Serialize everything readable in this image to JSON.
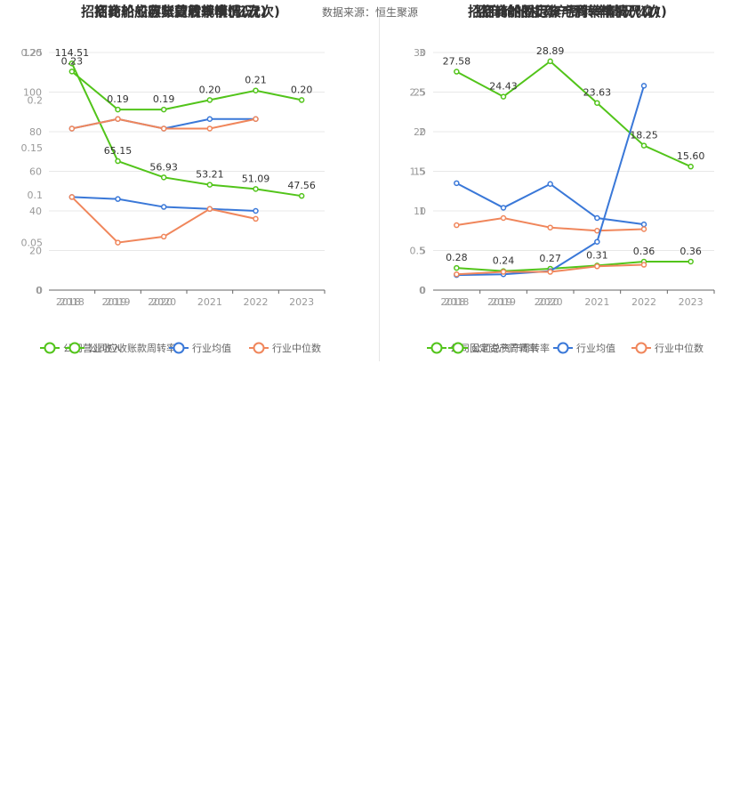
{
  "source_label": "数据来源：恒生聚源",
  "chart_data": [
    {
      "id": "left",
      "type": "line",
      "title": "招商轮船历年营收规模(亿元)",
      "overlay_titles": [
        "招商轮船应收账款周转率情况(次)",
        "招商轮船存货周转率情况(次)"
      ],
      "x": [
        "2018",
        "2019",
        "2020",
        "2021",
        "2022",
        "2023"
      ],
      "overlay_x": [
        "2018",
        "2019",
        "2020"
      ],
      "y_axis_left": {
        "ticks": [
          "0",
          "20",
          "40",
          "60",
          "80",
          "100",
          "120"
        ],
        "ylim": [
          0,
          120
        ]
      },
      "y_axis_right": {
        "ticks": [
          "0",
          "0.05",
          "0.1",
          "0.15",
          "0.2",
          "0.25"
        ],
        "ylim": [
          0,
          0.25
        ]
      },
      "series": [
        {
          "name": "公司营业收入",
          "axis": "left",
          "color": "#52c41a",
          "values": [
            114.51,
            65.15,
            56.93,
            53.21,
            51.09,
            47.56
          ],
          "labels": [
            "114.51",
            "65.15",
            "56.93",
            "53.21",
            "51.09",
            "47.56"
          ]
        },
        {
          "name": "公司应收账款周转率",
          "axis": "right",
          "color": "#52c41a",
          "values": [
            0.23,
            0.19,
            0.19,
            0.2,
            0.21,
            0.2
          ],
          "labels": [
            "0.23",
            "0.19",
            "0.19",
            "0.20",
            "0.21",
            "0.20"
          ]
        },
        {
          "name": "行业均值",
          "axis": "left",
          "color": "#3a78d8",
          "values": [
            47,
            46,
            42,
            41,
            40,
            null
          ]
        },
        {
          "name": "行业中位数",
          "axis": "left",
          "color": "#f0865b",
          "values": [
            47,
            24,
            27,
            41,
            36,
            null
          ]
        },
        {
          "name": "行业均值",
          "axis": "right",
          "color": "#3a78d8",
          "values": [
            0.17,
            0.18,
            0.17,
            0.18,
            0.18,
            null
          ]
        },
        {
          "name": "行业中位数",
          "axis": "right",
          "color": "#f0865b",
          "values": [
            0.17,
            0.18,
            0.17,
            0.17,
            0.18,
            null
          ]
        }
      ],
      "legend": [
        {
          "label": "公司营业收入",
          "color": "#52c41a"
        },
        {
          "label": "公司应收账款周转率",
          "color": "#52c41a"
        },
        {
          "label": "行业均值",
          "color": "#3a78d8"
        },
        {
          "label": "行业中位数",
          "color": "#f0865b"
        }
      ]
    },
    {
      "id": "right",
      "type": "line",
      "title": "招商轮船固定资产周转率情况(次)",
      "overlay_titles": [
        "招商轮船历年毛利率情况(%)",
        "招商轮船总资产周转率情况(次)"
      ],
      "x": [
        "2018",
        "2019",
        "2020",
        "2021",
        "2022",
        "2023"
      ],
      "overlay_x": [
        "2018",
        "2019",
        "2020"
      ],
      "y_axis_left": {
        "ticks": [
          "0",
          "0.5",
          "1",
          "1.5",
          "2",
          "2.5",
          "3"
        ],
        "ylim": [
          0,
          3
        ]
      },
      "y_axis_right": {
        "ticks": [
          "0",
          "5",
          "10",
          "15",
          "20",
          "25",
          "30"
        ],
        "ylim": [
          0,
          30
        ]
      },
      "series": [
        {
          "name": "公司毛利率",
          "axis": "right",
          "color": "#52c41a",
          "values": [
            27.58,
            24.43,
            28.89,
            23.63,
            18.25,
            15.6
          ],
          "labels": [
            "27.58",
            "24.43",
            "28.89",
            "23.63",
            "18.25",
            "15.60"
          ]
        },
        {
          "name": "公司总资产周转率",
          "axis": "left",
          "color": "#52c41a",
          "values": [
            0.28,
            0.24,
            0.27,
            0.31,
            0.36,
            0.36
          ],
          "labels": [
            "0.28",
            "0.24",
            "0.27",
            "0.31",
            "0.36",
            "0.36"
          ]
        },
        {
          "name": "行业均值",
          "axis": "right",
          "color": "#3a78d8",
          "values": [
            13.5,
            10.4,
            13.4,
            9.1,
            8.3,
            null
          ]
        },
        {
          "name": "行业中位数",
          "axis": "right",
          "color": "#f0865b",
          "values": [
            8.2,
            9.1,
            7.9,
            7.5,
            7.7,
            null
          ]
        },
        {
          "name": "行业均值",
          "axis": "left",
          "color": "#3a78d8",
          "values": [
            0.19,
            0.2,
            0.24,
            0.61,
            2.58,
            null
          ]
        },
        {
          "name": "行业中位数",
          "axis": "left",
          "color": "#f0865b",
          "values": [
            0.2,
            0.23,
            0.23,
            0.3,
            0.32,
            null
          ]
        }
      ],
      "legend": [
        {
          "label": "公司固定资产周转率",
          "color": "#52c41a"
        },
        {
          "label": "公司总资产周转率",
          "color": "#52c41a"
        },
        {
          "label": "行业均值",
          "color": "#3a78d8"
        },
        {
          "label": "行业中位数",
          "color": "#f0865b"
        }
      ]
    }
  ]
}
